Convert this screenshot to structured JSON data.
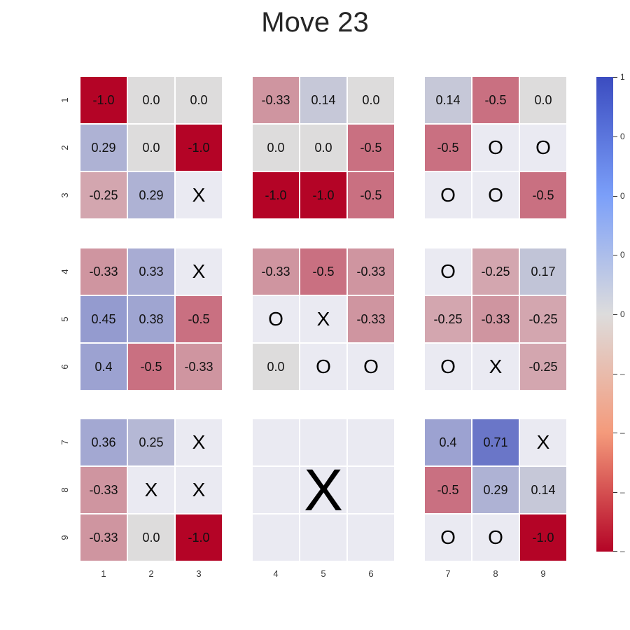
{
  "title": "Move 23",
  "row_labels": [
    "1",
    "2",
    "3",
    "4",
    "5",
    "6",
    "7",
    "8",
    "9"
  ],
  "col_labels": [
    "1",
    "2",
    "3",
    "4",
    "5",
    "6",
    "7",
    "8",
    "9"
  ],
  "colors": {
    "low": "#b40426",
    "mid": "#dddcdc",
    "high": "#3b4cc0",
    "empty": "#eaeaf2"
  },
  "won_block": {
    "row": 2,
    "col": 1,
    "mark": "X"
  },
  "grid": [
    [
      "-1.0",
      "0.0",
      "0.0",
      "-0.33",
      "0.14",
      "0.0",
      "0.14",
      "-0.5",
      "0.0"
    ],
    [
      "0.29",
      "0.0",
      "-1.0",
      "0.0",
      "0.0",
      "-0.5",
      "-0.5",
      "O",
      "O"
    ],
    [
      "-0.25",
      "0.29",
      "X",
      "-1.0",
      "-1.0",
      "-0.5",
      "O",
      "O",
      "-0.5"
    ],
    [
      "-0.33",
      "0.33",
      "X",
      "-0.33",
      "-0.5",
      "-0.33",
      "O",
      "-0.25",
      "0.17"
    ],
    [
      "0.45",
      "0.38",
      "-0.5",
      "O",
      "X",
      "-0.33",
      "-0.25",
      "-0.33",
      "-0.25"
    ],
    [
      "0.4",
      "-0.5",
      "-0.33",
      "0.0",
      "O",
      "O",
      "O",
      "X",
      "-0.25"
    ],
    [
      "0.36",
      "0.25",
      "X",
      "",
      "",
      "",
      "0.4",
      "0.71",
      "X"
    ],
    [
      "-0.33",
      "X",
      "X",
      "",
      "",
      "",
      "-0.5",
      "0.29",
      "0.14"
    ],
    [
      "-0.33",
      "0.0",
      "-1.0",
      "",
      "",
      "",
      "O",
      "O",
      "-1.0"
    ]
  ],
  "colorbar": {
    "ticks": [
      "1",
      "0",
      "0",
      "0",
      "0",
      "–",
      "–",
      "–",
      "–"
    ]
  }
}
